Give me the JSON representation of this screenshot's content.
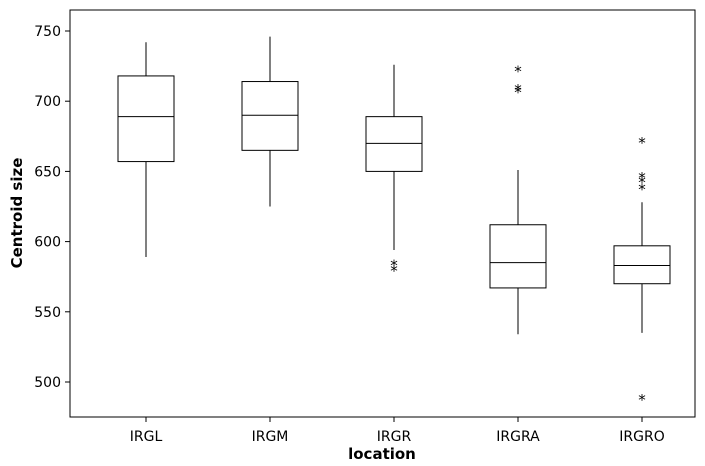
{
  "chart_data": {
    "type": "boxplot",
    "title": "",
    "xlabel": "location",
    "ylabel": "Centroid size",
    "ylim": [
      485,
      760
    ],
    "yticks": [
      500,
      550,
      600,
      650,
      700,
      750
    ],
    "grid": false,
    "legend": "none",
    "outlier_marker": "*",
    "categories": [
      "IRGL",
      "IRGM",
      "IRGR",
      "IRGRA",
      "IRGRO"
    ],
    "boxes": [
      {
        "category": "IRGL",
        "whisker_low": 589,
        "q1": 657,
        "median": 689,
        "q3": 718,
        "whisker_high": 742,
        "outliers": []
      },
      {
        "category": "IRGM",
        "whisker_low": 625,
        "q1": 665,
        "median": 690,
        "q3": 714,
        "whisker_high": 746,
        "outliers": []
      },
      {
        "category": "IRGR",
        "whisker_low": 594,
        "q1": 650,
        "median": 670,
        "q3": 689,
        "whisker_high": 726,
        "outliers": [
          582,
          586
        ]
      },
      {
        "category": "IRGRA",
        "whisker_low": 534,
        "q1": 567,
        "median": 585,
        "q3": 612,
        "whisker_high": 651,
        "outliers": [
          709,
          711,
          724
        ]
      },
      {
        "category": "IRGRO",
        "whisker_low": 535,
        "q1": 570,
        "median": 583,
        "q3": 597,
        "whisker_high": 628,
        "outliers": [
          490,
          640,
          645,
          648,
          673
        ]
      }
    ]
  }
}
